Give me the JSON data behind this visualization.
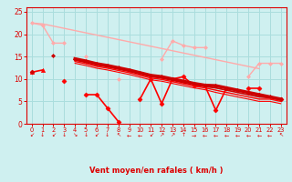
{
  "xlabel": "Vent moyen/en rafales ( km/h )",
  "background_color": "#cff0f0",
  "grid_color": "#aadddd",
  "x": [
    0,
    1,
    2,
    3,
    4,
    5,
    6,
    7,
    8,
    9,
    10,
    11,
    12,
    13,
    14,
    15,
    16,
    17,
    18,
    19,
    20,
    21,
    22,
    23
  ],
  "series": [
    {
      "y": [
        22.5,
        22.3,
        21.8,
        21.3,
        20.8,
        20.3,
        19.8,
        19.3,
        18.8,
        18.3,
        17.8,
        17.3,
        16.8,
        16.3,
        15.8,
        15.3,
        14.8,
        14.3,
        13.8,
        13.3,
        12.8,
        12.3,
        null,
        null
      ],
      "color": "#ffaaaa",
      "lw": 1.0,
      "marker": null,
      "ms": 0
    },
    {
      "y": [
        22.5,
        22.0,
        18.0,
        18.0,
        null,
        15.0,
        null,
        null,
        10.0,
        null,
        null,
        null,
        14.5,
        18.5,
        17.5,
        17.0,
        17.0,
        null,
        null,
        null,
        10.5,
        13.5,
        13.5,
        13.5
      ],
      "color": "#ffaaaa",
      "lw": 1.0,
      "marker": "D",
      "ms": 2.0
    },
    {
      "y": [
        11.5,
        12.0,
        null,
        null,
        null,
        null,
        null,
        null,
        null,
        null,
        null,
        null,
        null,
        null,
        null,
        null,
        null,
        null,
        null,
        null,
        null,
        null,
        null,
        null
      ],
      "color": "#ff0000",
      "lw": 1.2,
      "marker": "^",
      "ms": 3.0
    },
    {
      "y": [
        11.5,
        null,
        null,
        9.5,
        null,
        6.5,
        6.5,
        3.5,
        0.5,
        null,
        5.5,
        10.0,
        4.5,
        10.0,
        10.5,
        8.5,
        8.5,
        3.0,
        8.0,
        null,
        8.0,
        8.0,
        null,
        5.5
      ],
      "color": "#ff0000",
      "lw": 1.2,
      "marker": "D",
      "ms": 2.5
    },
    {
      "y": [
        11.5,
        null,
        15.2,
        null,
        14.5,
        14.0,
        13.4,
        13.0,
        12.5,
        12.0,
        11.4,
        10.8,
        10.5,
        10.0,
        9.5,
        9.0,
        8.6,
        8.5,
        8.0,
        7.5,
        7.0,
        6.5,
        6.0,
        5.5
      ],
      "color": "#cc0000",
      "lw": 2.5,
      "marker": "D",
      "ms": 2.0
    },
    {
      "y": [
        11.5,
        null,
        14.8,
        null,
        14.2,
        13.7,
        13.1,
        12.7,
        12.2,
        11.7,
        11.1,
        10.5,
        10.2,
        9.7,
        9.2,
        8.7,
        8.3,
        8.0,
        7.5,
        7.0,
        6.5,
        6.0,
        5.8,
        5.3
      ],
      "color": "#cc0000",
      "lw": 1.2,
      "marker": null,
      "ms": 0
    },
    {
      "y": [
        11.5,
        null,
        14.5,
        null,
        13.9,
        13.4,
        12.8,
        12.4,
        11.9,
        11.4,
        10.8,
        10.2,
        9.9,
        9.4,
        8.9,
        8.4,
        8.0,
        7.5,
        7.0,
        6.5,
        6.0,
        5.5,
        5.5,
        5.0
      ],
      "color": "#ff0000",
      "lw": 1.0,
      "marker": null,
      "ms": 0
    },
    {
      "y": [
        11.5,
        null,
        14.2,
        null,
        13.5,
        13.0,
        12.4,
        12.0,
        11.5,
        11.0,
        10.4,
        9.8,
        9.5,
        9.0,
        8.5,
        8.0,
        7.6,
        7.0,
        6.5,
        6.0,
        5.5,
        5.0,
        5.0,
        4.5
      ],
      "color": "#ff0000",
      "lw": 0.8,
      "marker": null,
      "ms": 0
    }
  ],
  "ylim": [
    0,
    26
  ],
  "xlim": [
    -0.5,
    23.5
  ],
  "yticks": [
    0,
    5,
    10,
    15,
    20,
    25
  ],
  "xticks": [
    0,
    1,
    2,
    3,
    4,
    5,
    6,
    7,
    8,
    9,
    10,
    11,
    12,
    13,
    14,
    15,
    16,
    17,
    18,
    19,
    20,
    21,
    22,
    23
  ],
  "tick_color": "#dd0000",
  "axis_color": "#dd0000",
  "wind_arrows": [
    "↙",
    "↓",
    "↙",
    "↓",
    "↘",
    "↓",
    "↙",
    "↓",
    "↖",
    "←",
    "←",
    "↙",
    "↗",
    "↗",
    "↑",
    "→",
    "←",
    "←",
    "←",
    "←",
    "←",
    "←",
    "←",
    "↖"
  ]
}
